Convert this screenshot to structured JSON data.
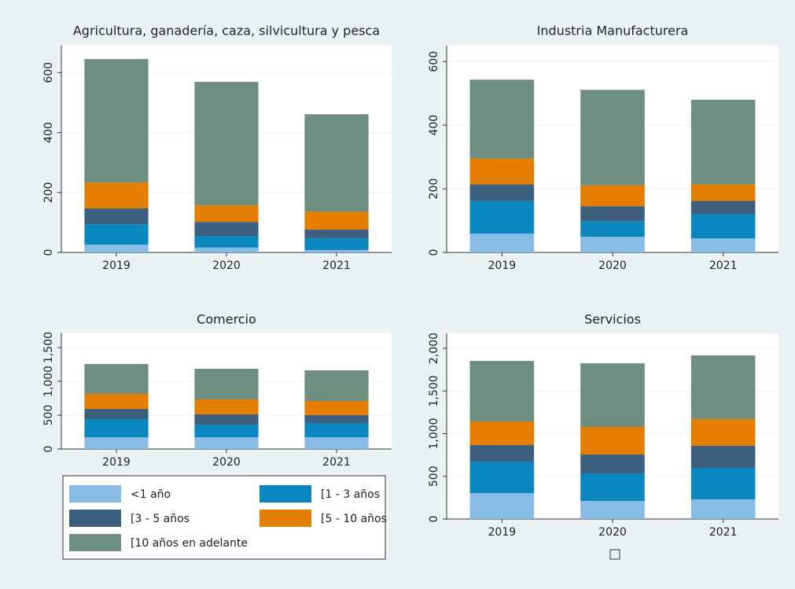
{
  "legend": [
    {
      "name": "<1 año",
      "color": "#86bce6"
    },
    {
      "name": "[1 - 3 años",
      "color": "#0a87bf"
    },
    {
      "name": "[3 - 5 años",
      "color": "#3c5f7d"
    },
    {
      "name": "[5 - 10 años",
      "color": "#e37e00"
    },
    {
      "name": "[10 años en adelante",
      "color": "#6e8f80"
    }
  ],
  "chart_data": [
    {
      "type": "bar",
      "stacked": true,
      "title": "Agricultura, ganadería, caza, silvicultura y pesca",
      "categories": [
        "2019",
        "2020",
        "2021"
      ],
      "ylim": [
        0,
        690
      ],
      "yticks": [
        0,
        200,
        400,
        600
      ],
      "grid": true,
      "series": [
        {
          "values": [
            26,
            16,
            8
          ]
        },
        {
          "values": [
            68,
            39,
            39
          ]
        },
        {
          "values": [
            53,
            47,
            29
          ]
        },
        {
          "values": [
            86,
            55,
            60
          ]
        },
        {
          "values": [
            412,
            412,
            325
          ]
        }
      ]
    },
    {
      "type": "bar",
      "stacked": true,
      "title": "Industria Manufacturera",
      "categories": [
        "2019",
        "2020",
        "2021"
      ],
      "ylim": [
        0,
        650
      ],
      "yticks": [
        0,
        200,
        400,
        600
      ],
      "grid": true,
      "series": [
        {
          "values": [
            59,
            49,
            44
          ]
        },
        {
          "values": [
            103,
            49,
            76
          ]
        },
        {
          "values": [
            52,
            47,
            42
          ]
        },
        {
          "values": [
            81,
            66,
            52
          ]
        },
        {
          "values": [
            248,
            300,
            266
          ]
        }
      ]
    },
    {
      "type": "bar",
      "stacked": true,
      "title": "Comercio",
      "categories": [
        "2019",
        "2020",
        "2021"
      ],
      "ylim": [
        0,
        1720
      ],
      "yticks": [
        0,
        500,
        {
          "value": 1000,
          "label": "1,000"
        },
        {
          "value": 1500,
          "label": "1,500"
        }
      ],
      "grid": true,
      "series": [
        {
          "values": [
            174,
            174,
            174
          ]
        },
        {
          "values": [
            268,
            186,
            210
          ]
        },
        {
          "values": [
            151,
            152,
            116
          ]
        },
        {
          "values": [
            221,
            221,
            209
          ]
        },
        {
          "values": [
            442,
            453,
            454
          ]
        }
      ]
    },
    {
      "type": "bar",
      "stacked": true,
      "title": "Servicios",
      "categories": [
        "2019",
        "2020",
        "2021"
      ],
      "ylim": [
        0,
        2175
      ],
      "yticks": [
        0,
        500,
        {
          "value": 1000,
          "label": "1,000"
        },
        {
          "value": 1500,
          "label": "1,500"
        },
        {
          "value": 2000,
          "label": "2,000"
        }
      ],
      "grid": true,
      "series": [
        {
          "values": [
            304,
            212,
            230
          ]
        },
        {
          "values": [
            369,
            323,
            369
          ]
        },
        {
          "values": [
            193,
            221,
            258
          ]
        },
        {
          "values": [
            277,
            322,
            314
          ]
        },
        {
          "values": [
            710,
            747,
            746
          ]
        }
      ]
    }
  ]
}
